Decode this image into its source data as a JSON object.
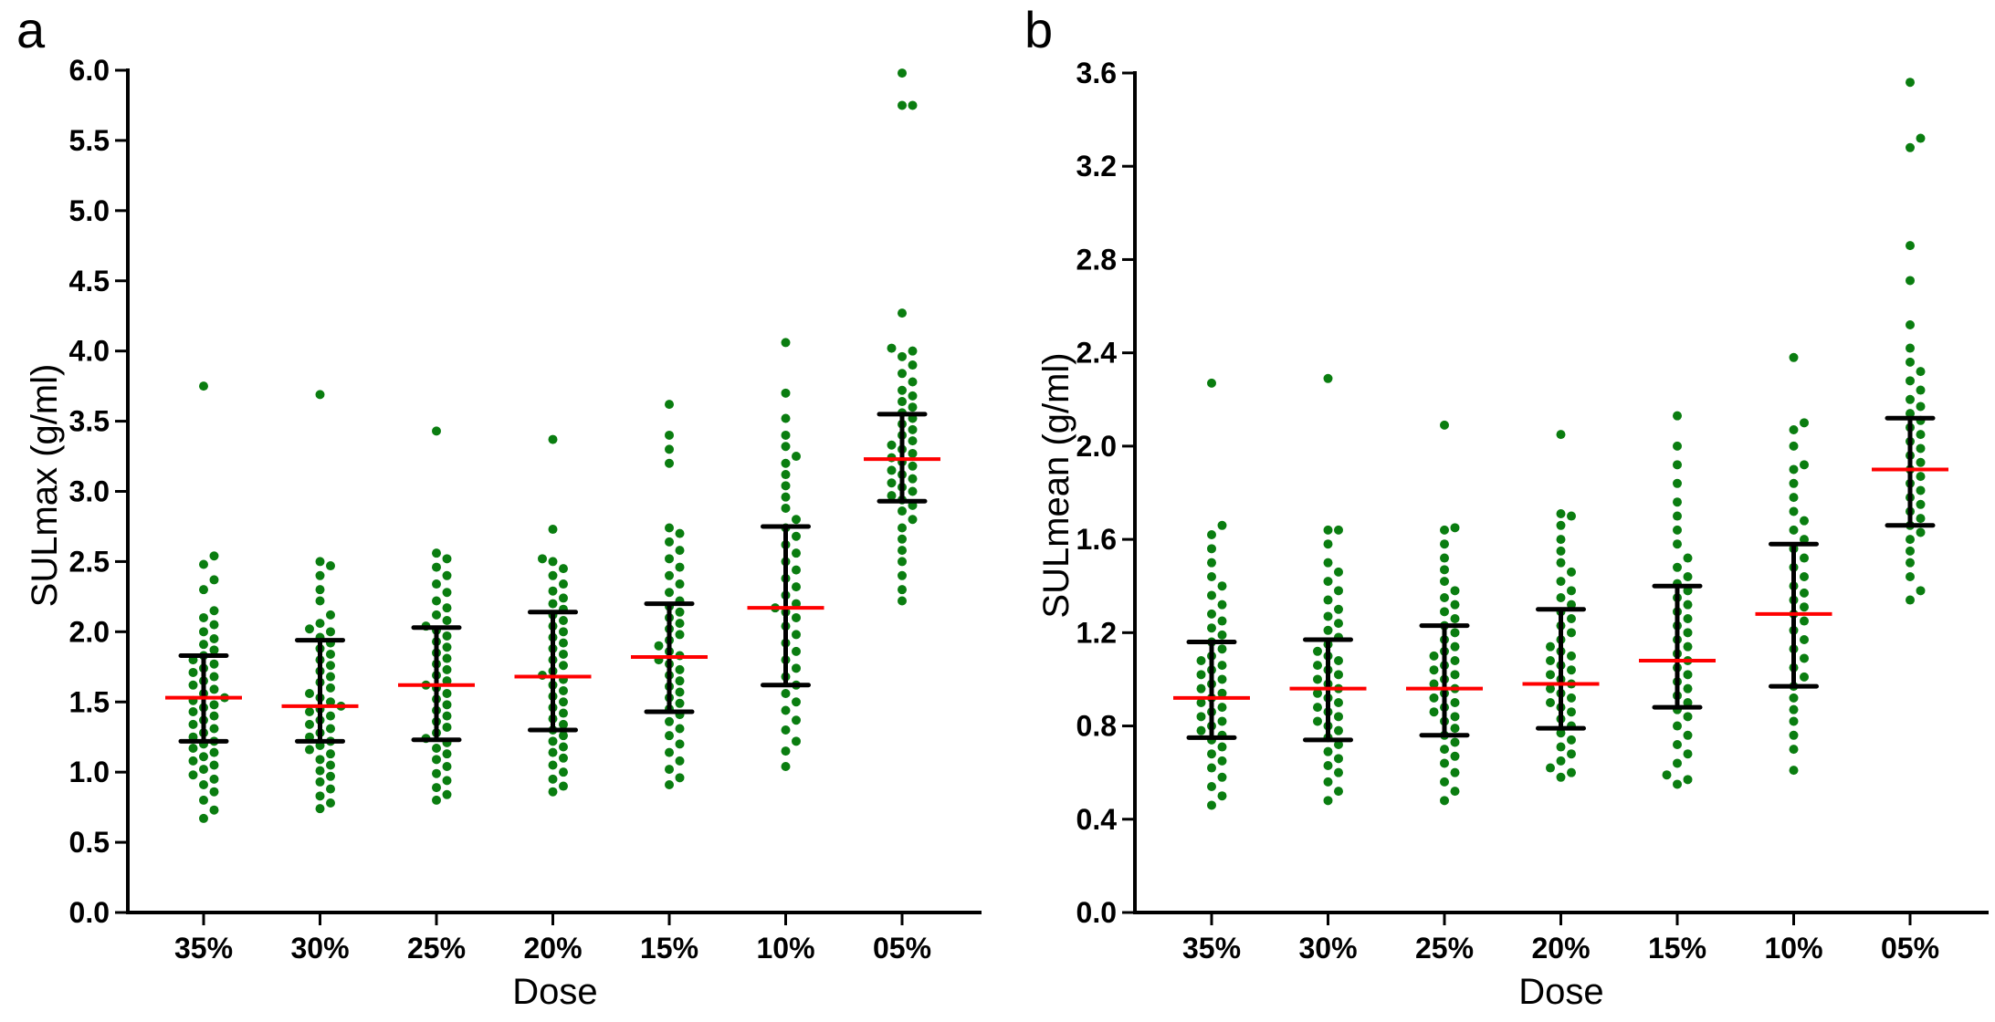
{
  "colors": {
    "point": "#0a7d10",
    "median": "#ff0000",
    "errorbar": "#000000",
    "axis": "#000000"
  },
  "chart_data": [
    {
      "type": "scatter",
      "panel_label": "a",
      "xlabel": "Dose",
      "ylabel": "SULmax (g/ml)",
      "ylim": [
        0,
        6.0
      ],
      "yticks": [
        0.0,
        0.5,
        1.0,
        1.5,
        2.0,
        2.5,
        3.0,
        3.5,
        4.0,
        4.5,
        5.0,
        5.5,
        6.0
      ],
      "ytick_labels": [
        "0.0",
        "0.5",
        "1.0",
        "1.5",
        "2.0",
        "2.5",
        "3.0",
        "3.5",
        "4.0",
        "4.5",
        "5.0",
        "5.5",
        "6.0"
      ],
      "categories": [
        "35%",
        "30%",
        "25%",
        "20%",
        "15%",
        "10%",
        "05%"
      ],
      "series": [
        {
          "name": "35%",
          "median": 1.53,
          "q1": 1.22,
          "q3": 1.83,
          "values": [
            0.67,
            0.73,
            0.8,
            0.86,
            0.91,
            0.95,
            0.98,
            1.02,
            1.05,
            1.08,
            1.11,
            1.14,
            1.17,
            1.2,
            1.22,
            1.25,
            1.28,
            1.31,
            1.34,
            1.37,
            1.4,
            1.43,
            1.46,
            1.48,
            1.51,
            1.53,
            1.56,
            1.59,
            1.62,
            1.65,
            1.68,
            1.71,
            1.74,
            1.77,
            1.8,
            1.83,
            1.87,
            1.91,
            1.95,
            2.0,
            2.05,
            2.1,
            2.15,
            2.3,
            2.37,
            2.48,
            2.54,
            3.75
          ]
        },
        {
          "name": "30%",
          "median": 1.47,
          "q1": 1.22,
          "q3": 1.94,
          "values": [
            0.74,
            0.78,
            0.83,
            0.88,
            0.93,
            0.97,
            1.01,
            1.05,
            1.09,
            1.13,
            1.16,
            1.19,
            1.22,
            1.25,
            1.28,
            1.31,
            1.34,
            1.37,
            1.4,
            1.43,
            1.45,
            1.47,
            1.5,
            1.53,
            1.56,
            1.6,
            1.64,
            1.68,
            1.72,
            1.76,
            1.8,
            1.84,
            1.88,
            1.92,
            1.96,
            2.0,
            2.02,
            2.06,
            2.12,
            2.22,
            2.3,
            2.4,
            2.47,
            2.5,
            3.69
          ]
        },
        {
          "name": "25%",
          "median": 1.62,
          "q1": 1.23,
          "q3": 2.03,
          "values": [
            0.8,
            0.84,
            0.89,
            0.94,
            0.99,
            1.04,
            1.09,
            1.13,
            1.17,
            1.21,
            1.24,
            1.28,
            1.32,
            1.36,
            1.4,
            1.44,
            1.48,
            1.52,
            1.56,
            1.6,
            1.62,
            1.65,
            1.69,
            1.73,
            1.77,
            1.81,
            1.85,
            1.89,
            1.93,
            1.97,
            2.01,
            2.04,
            2.08,
            2.12,
            2.17,
            2.22,
            2.28,
            2.34,
            2.4,
            2.46,
            2.52,
            2.56,
            3.43
          ]
        },
        {
          "name": "20%",
          "median": 1.68,
          "q1": 1.3,
          "q3": 2.14,
          "values": [
            0.86,
            0.9,
            0.95,
            1.0,
            1.05,
            1.1,
            1.14,
            1.18,
            1.22,
            1.26,
            1.3,
            1.34,
            1.38,
            1.42,
            1.46,
            1.5,
            1.54,
            1.58,
            1.62,
            1.66,
            1.69,
            1.72,
            1.76,
            1.8,
            1.84,
            1.88,
            1.92,
            1.96,
            2.0,
            2.04,
            2.08,
            2.12,
            2.16,
            2.2,
            2.24,
            2.29,
            2.34,
            2.4,
            2.45,
            2.5,
            2.52,
            2.73,
            3.37
          ]
        },
        {
          "name": "15%",
          "median": 1.82,
          "q1": 1.43,
          "q3": 2.2,
          "values": [
            0.91,
            0.96,
            1.02,
            1.08,
            1.14,
            1.2,
            1.26,
            1.31,
            1.36,
            1.41,
            1.45,
            1.49,
            1.53,
            1.57,
            1.61,
            1.65,
            1.69,
            1.73,
            1.77,
            1.8,
            1.83,
            1.86,
            1.9,
            1.94,
            1.98,
            2.02,
            2.06,
            2.1,
            2.14,
            2.18,
            2.22,
            2.28,
            2.34,
            2.4,
            2.46,
            2.52,
            2.58,
            2.64,
            2.7,
            2.74,
            3.2,
            3.3,
            3.4,
            3.62
          ]
        },
        {
          "name": "10%",
          "median": 2.17,
          "q1": 1.62,
          "q3": 2.75,
          "values": [
            1.04,
            1.15,
            1.22,
            1.3,
            1.37,
            1.44,
            1.5,
            1.56,
            1.62,
            1.68,
            1.74,
            1.8,
            1.86,
            1.92,
            1.98,
            2.04,
            2.1,
            2.14,
            2.17,
            2.2,
            2.26,
            2.32,
            2.38,
            2.44,
            2.5,
            2.56,
            2.62,
            2.68,
            2.74,
            2.8,
            2.88,
            2.96,
            3.04,
            3.12,
            3.2,
            3.25,
            3.32,
            3.4,
            3.52,
            3.7,
            4.06
          ]
        },
        {
          "name": "05%",
          "median": 3.23,
          "q1": 2.93,
          "q3": 3.55,
          "values": [
            2.22,
            2.3,
            2.4,
            2.5,
            2.58,
            2.66,
            2.74,
            2.8,
            2.86,
            2.9,
            2.94,
            2.97,
            3.0,
            3.03,
            3.06,
            3.09,
            3.12,
            3.15,
            3.18,
            3.21,
            3.24,
            3.27,
            3.3,
            3.33,
            3.36,
            3.4,
            3.44,
            3.48,
            3.52,
            3.56,
            3.6,
            3.64,
            3.68,
            3.72,
            3.78,
            3.84,
            3.9,
            3.96,
            4.0,
            4.02,
            4.27,
            5.75,
            5.75,
            5.98
          ]
        }
      ]
    },
    {
      "type": "scatter",
      "panel_label": "b",
      "xlabel": "Dose",
      "ylabel": "SULmean (g/ml)",
      "ylim": [
        0,
        3.6
      ],
      "yticks": [
        0.0,
        0.4,
        0.8,
        1.2,
        1.6,
        2.0,
        2.4,
        2.8,
        3.2,
        3.6
      ],
      "ytick_labels": [
        "0.0",
        "0.4",
        "0.8",
        "1.2",
        "1.6",
        "2.0",
        "2.4",
        "2.8",
        "3.2",
        "3.6"
      ],
      "categories": [
        "35%",
        "30%",
        "25%",
        "20%",
        "15%",
        "10%",
        "05%"
      ],
      "series": [
        {
          "name": "35%",
          "median": 0.92,
          "q1": 0.75,
          "q3": 1.16,
          "values": [
            0.46,
            0.5,
            0.54,
            0.58,
            0.62,
            0.65,
            0.68,
            0.71,
            0.74,
            0.76,
            0.78,
            0.8,
            0.82,
            0.84,
            0.86,
            0.88,
            0.9,
            0.92,
            0.94,
            0.96,
            0.98,
            1.0,
            1.02,
            1.04,
            1.06,
            1.08,
            1.1,
            1.13,
            1.16,
            1.19,
            1.22,
            1.25,
            1.28,
            1.32,
            1.36,
            1.4,
            1.44,
            1.5,
            1.56,
            1.62,
            1.66,
            2.27
          ]
        },
        {
          "name": "30%",
          "median": 0.96,
          "q1": 0.74,
          "q3": 1.17,
          "values": [
            0.48,
            0.52,
            0.56,
            0.6,
            0.63,
            0.66,
            0.69,
            0.72,
            0.75,
            0.78,
            0.8,
            0.82,
            0.84,
            0.86,
            0.88,
            0.9,
            0.92,
            0.94,
            0.96,
            0.98,
            1.0,
            1.02,
            1.04,
            1.06,
            1.08,
            1.1,
            1.12,
            1.15,
            1.18,
            1.21,
            1.24,
            1.27,
            1.3,
            1.34,
            1.38,
            1.42,
            1.46,
            1.5,
            1.58,
            1.64,
            1.64,
            2.29
          ]
        },
        {
          "name": "25%",
          "median": 0.96,
          "q1": 0.76,
          "q3": 1.23,
          "values": [
            0.48,
            0.52,
            0.56,
            0.6,
            0.64,
            0.67,
            0.7,
            0.73,
            0.76,
            0.79,
            0.82,
            0.84,
            0.86,
            0.88,
            0.9,
            0.92,
            0.94,
            0.96,
            0.98,
            1.0,
            1.02,
            1.04,
            1.06,
            1.08,
            1.1,
            1.12,
            1.14,
            1.17,
            1.2,
            1.23,
            1.26,
            1.29,
            1.32,
            1.35,
            1.38,
            1.42,
            1.47,
            1.52,
            1.58,
            1.64,
            1.65,
            2.09
          ]
        },
        {
          "name": "20%",
          "median": 0.98,
          "q1": 0.79,
          "q3": 1.3,
          "values": [
            0.58,
            0.6,
            0.62,
            0.65,
            0.68,
            0.71,
            0.74,
            0.77,
            0.8,
            0.83,
            0.86,
            0.88,
            0.9,
            0.92,
            0.94,
            0.96,
            0.98,
            1.0,
            1.02,
            1.04,
            1.06,
            1.08,
            1.1,
            1.12,
            1.14,
            1.17,
            1.2,
            1.23,
            1.26,
            1.29,
            1.32,
            1.35,
            1.38,
            1.42,
            1.46,
            1.5,
            1.55,
            1.6,
            1.66,
            1.7,
            1.71,
            2.05
          ]
        },
        {
          "name": "15%",
          "median": 1.08,
          "q1": 0.88,
          "q3": 1.4,
          "values": [
            0.55,
            0.57,
            0.59,
            0.64,
            0.68,
            0.72,
            0.76,
            0.8,
            0.84,
            0.87,
            0.9,
            0.93,
            0.96,
            0.99,
            1.02,
            1.05,
            1.08,
            1.11,
            1.14,
            1.17,
            1.2,
            1.23,
            1.26,
            1.29,
            1.32,
            1.35,
            1.38,
            1.41,
            1.44,
            1.48,
            1.52,
            1.58,
            1.64,
            1.7,
            1.76,
            1.84,
            1.92,
            2.0,
            2.13
          ]
        },
        {
          "name": "10%",
          "median": 1.28,
          "q1": 0.97,
          "q3": 1.58,
          "values": [
            0.61,
            0.7,
            0.76,
            0.82,
            0.87,
            0.92,
            0.97,
            1.01,
            1.05,
            1.09,
            1.13,
            1.17,
            1.21,
            1.25,
            1.28,
            1.31,
            1.34,
            1.37,
            1.4,
            1.44,
            1.48,
            1.52,
            1.56,
            1.6,
            1.64,
            1.68,
            1.72,
            1.78,
            1.84,
            1.9,
            1.92,
            2.0,
            2.07,
            2.1,
            2.38
          ]
        },
        {
          "name": "05%",
          "median": 1.9,
          "q1": 1.66,
          "q3": 2.12,
          "values": [
            1.34,
            1.38,
            1.44,
            1.5,
            1.55,
            1.6,
            1.63,
            1.66,
            1.69,
            1.72,
            1.75,
            1.78,
            1.81,
            1.84,
            1.87,
            1.9,
            1.93,
            1.96,
            1.99,
            2.02,
            2.05,
            2.08,
            2.11,
            2.14,
            2.17,
            2.2,
            2.24,
            2.28,
            2.32,
            2.36,
            2.42,
            2.52,
            2.71,
            2.86,
            3.28,
            3.32,
            3.56
          ]
        }
      ]
    }
  ]
}
